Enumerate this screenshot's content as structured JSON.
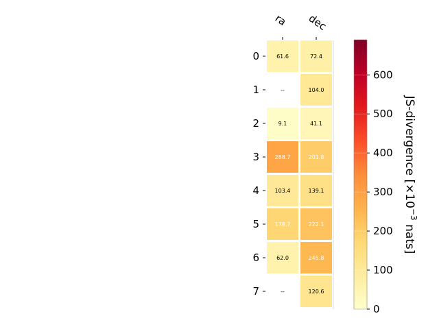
{
  "chart_data": {
    "type": "heatmap",
    "columns": [
      "ra",
      "dec"
    ],
    "rows": [
      "0",
      "1",
      "2",
      "3",
      "4",
      "5",
      "6",
      "7"
    ],
    "values": [
      [
        61.6,
        72.4
      ],
      [
        null,
        104.0
      ],
      [
        9.1,
        41.1
      ],
      [
        288.7,
        201.8
      ],
      [
        103.4,
        139.1
      ],
      [
        178.7,
        222.1
      ],
      [
        62.0,
        245.8
      ],
      [
        null,
        120.6
      ]
    ],
    "cell_labels": [
      [
        "61.6",
        "72.4"
      ],
      [
        "--",
        "104.0"
      ],
      [
        "9.1",
        "41.1"
      ],
      [
        "288.7",
        "201.8"
      ],
      [
        "103.4",
        "139.1"
      ],
      [
        "178.7",
        "222.1"
      ],
      [
        "62.0",
        "245.8"
      ],
      [
        "--",
        "120.6"
      ]
    ],
    "colorbar": {
      "label_main": "JS-divergence [×10",
      "label_exp": "−3",
      "label_unit": " nats]",
      "range": [
        0,
        690
      ],
      "ticks": [
        "0",
        "100",
        "200",
        "300",
        "400",
        "500",
        "600"
      ],
      "tick_values": [
        0,
        100,
        200,
        300,
        400,
        500,
        600
      ],
      "colormap": "YlOrRd"
    }
  }
}
